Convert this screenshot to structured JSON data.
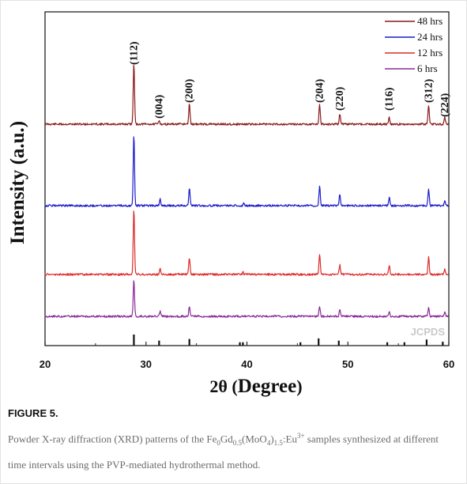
{
  "chart_data": {
    "type": "line",
    "xlabel_pre": "2θ (",
    "xlabel_word": "Degree",
    "xlabel_post": ")",
    "ylabel": "Intensity (a.u.)",
    "xlim": [
      20,
      60
    ],
    "xticks": [
      "20",
      "30",
      "40",
      "50",
      "60"
    ],
    "legend_position": "top-right",
    "series": [
      {
        "name": "48 hrs",
        "color": "#8b1a1a",
        "peaks": [
          [
            28.8,
            78
          ],
          [
            31.3,
            5
          ],
          [
            34.3,
            26
          ],
          [
            47.2,
            25
          ],
          [
            49.2,
            13
          ],
          [
            54.1,
            8
          ],
          [
            58.0,
            24
          ],
          [
            59.6,
            8
          ]
        ]
      },
      {
        "name": "24 hrs",
        "color": "#1c1ccc",
        "peaks": [
          [
            28.8,
            90
          ],
          [
            31.4,
            8
          ],
          [
            34.3,
            23
          ],
          [
            39.7,
            3
          ],
          [
            47.2,
            25
          ],
          [
            49.2,
            14
          ],
          [
            54.1,
            10
          ],
          [
            58.0,
            21
          ],
          [
            59.6,
            7
          ]
        ]
      },
      {
        "name": "12 hrs",
        "color": "#dd2a2a",
        "peaks": [
          [
            28.8,
            82
          ],
          [
            31.4,
            7
          ],
          [
            34.3,
            21
          ],
          [
            39.6,
            3
          ],
          [
            47.2,
            26
          ],
          [
            49.2,
            12
          ],
          [
            54.1,
            11
          ],
          [
            58.0,
            22
          ],
          [
            59.6,
            7
          ]
        ]
      },
      {
        "name": "6 hrs",
        "color": "#8a2a9a",
        "peaks": [
          [
            28.8,
            47
          ],
          [
            31.4,
            6
          ],
          [
            34.3,
            12
          ],
          [
            47.2,
            12
          ],
          [
            49.2,
            8
          ],
          [
            54.1,
            5
          ],
          [
            58.0,
            11
          ],
          [
            59.6,
            5
          ]
        ]
      }
    ],
    "miller_labels": [
      {
        "x": 28.8,
        "text": "(112)"
      },
      {
        "x": 31.3,
        "text": "(004)"
      },
      {
        "x": 34.3,
        "text": "(200)"
      },
      {
        "x": 47.2,
        "text": "(204)"
      },
      {
        "x": 49.2,
        "text": "(220)"
      },
      {
        "x": 54.1,
        "text": "(116)"
      },
      {
        "x": 58.0,
        "text": "(312)"
      },
      {
        "x": 59.6,
        "text": "(224)"
      }
    ],
    "reference": {
      "name": "JCPDS",
      "lines": [
        [
          28.8,
          1.0
        ],
        [
          31.3,
          0.45
        ],
        [
          34.3,
          0.6
        ],
        [
          39.3,
          0.3
        ],
        [
          39.6,
          0.3
        ],
        [
          45.3,
          0.3
        ],
        [
          47.1,
          0.65
        ],
        [
          49.1,
          0.45
        ],
        [
          53.9,
          0.3
        ],
        [
          55.6,
          0.3
        ],
        [
          57.8,
          0.55
        ],
        [
          59.4,
          0.35
        ]
      ]
    }
  },
  "figure": {
    "label": "FIGURE 5.",
    "caption_1": "Powder X-ray diffraction (XRD) patterns of the Fe",
    "caption_sub1": "0",
    "caption_2": "Gd",
    "caption_sub2": "0.5",
    "caption_3": "(MoO",
    "caption_sub3": "4",
    "caption_4": ")",
    "caption_sub4": "1.5",
    "caption_5": ":Eu",
    "caption_sup1": "3+",
    "caption_6": " samples synthesized at different time intervals using the PVP-mediated hydrothermal method."
  }
}
